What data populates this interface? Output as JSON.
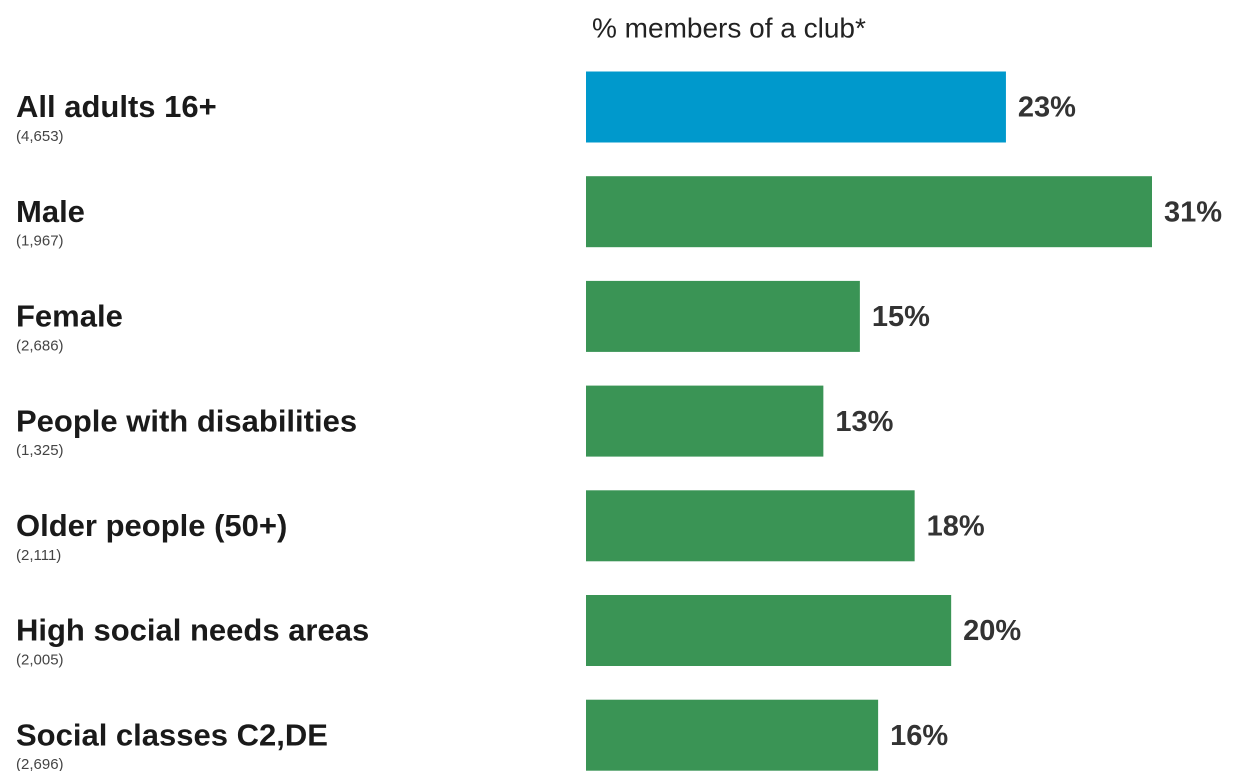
{
  "chart_data": {
    "type": "bar",
    "orientation": "horizontal",
    "title": "% members of a club*",
    "categories": [
      "All adults 16+",
      "Male",
      "Female",
      "People with disabilities",
      "Older people (50+)",
      "High social needs areas",
      "Social classes C2,DE"
    ],
    "sample_sizes": [
      "(4,653)",
      "(1,967)",
      "(2,686)",
      "(1,325)",
      "(2,111)",
      "(2,005)",
      "(2,696)"
    ],
    "values": [
      23,
      31,
      15,
      13,
      18,
      20,
      16
    ],
    "value_labels": [
      "23%",
      "31%",
      "15%",
      "13%",
      "18%",
      "20%",
      "16%"
    ],
    "colors": [
      "#0099cc",
      "#3a9455",
      "#3a9455",
      "#3a9455",
      "#3a9455",
      "#3a9455",
      "#3a9455"
    ],
    "xlim": [
      0,
      31
    ]
  }
}
